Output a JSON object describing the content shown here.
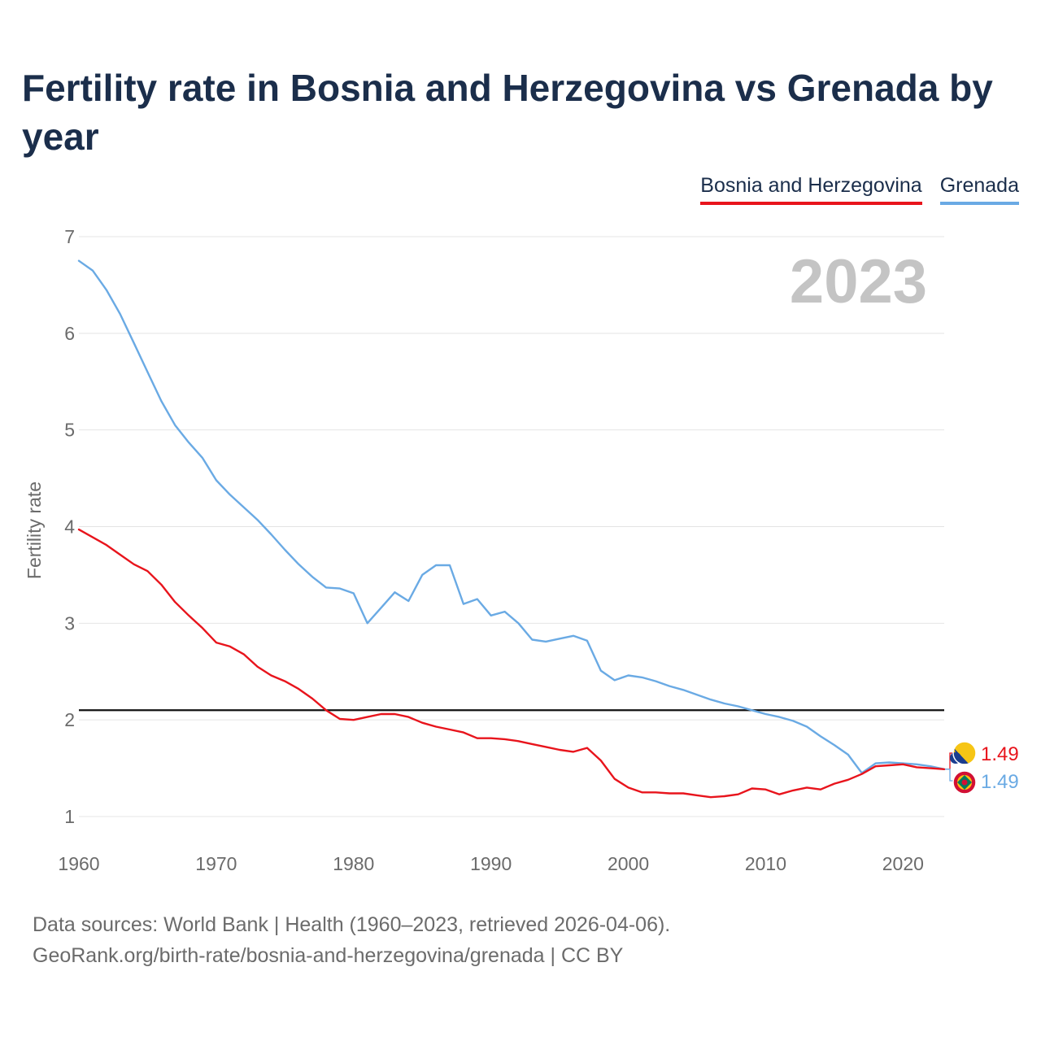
{
  "chart_data": {
    "type": "line",
    "title": "Fertility rate in Bosnia and Herzegovina vs Grenada by year",
    "ylabel": "Fertility rate",
    "xlabel": "",
    "xlim": [
      1960,
      2023
    ],
    "ylim": [
      1,
      7
    ],
    "x_ticks": [
      1960,
      1970,
      1980,
      1990,
      2000,
      2010,
      2020
    ],
    "y_ticks": [
      1,
      2,
      3,
      4,
      5,
      6,
      7
    ],
    "grid": true,
    "year_label": "2023",
    "reference_line": 2.1,
    "legend_position": "top-right",
    "x": [
      1960,
      1961,
      1962,
      1963,
      1964,
      1965,
      1966,
      1967,
      1968,
      1969,
      1970,
      1971,
      1972,
      1973,
      1974,
      1975,
      1976,
      1977,
      1978,
      1979,
      1980,
      1981,
      1982,
      1983,
      1984,
      1985,
      1986,
      1987,
      1988,
      1989,
      1990,
      1991,
      1992,
      1993,
      1994,
      1995,
      1996,
      1997,
      1998,
      1999,
      2000,
      2001,
      2002,
      2003,
      2004,
      2005,
      2006,
      2007,
      2008,
      2009,
      2010,
      2011,
      2012,
      2013,
      2014,
      2015,
      2016,
      2017,
      2018,
      2019,
      2020,
      2021,
      2022,
      2023
    ],
    "series": [
      {
        "name": "Bosnia and Herzegovina",
        "color": "#e8141c",
        "end_label": "1.49",
        "values": [
          3.97,
          3.89,
          3.81,
          3.71,
          3.61,
          3.54,
          3.4,
          3.22,
          3.08,
          2.95,
          2.8,
          2.76,
          2.68,
          2.55,
          2.46,
          2.4,
          2.32,
          2.22,
          2.1,
          2.01,
          2.0,
          2.03,
          2.06,
          2.06,
          2.03,
          1.97,
          1.93,
          1.9,
          1.87,
          1.81,
          1.81,
          1.8,
          1.78,
          1.75,
          1.72,
          1.69,
          1.67,
          1.71,
          1.58,
          1.39,
          1.3,
          1.25,
          1.25,
          1.24,
          1.24,
          1.22,
          1.2,
          1.21,
          1.23,
          1.29,
          1.28,
          1.23,
          1.27,
          1.3,
          1.28,
          1.34,
          1.38,
          1.44,
          1.52,
          1.53,
          1.54,
          1.51,
          1.5,
          1.49
        ]
      },
      {
        "name": "Grenada",
        "color": "#6aaae4",
        "end_label": "1.49",
        "values": [
          6.75,
          6.65,
          6.45,
          6.2,
          5.9,
          5.6,
          5.3,
          5.05,
          4.87,
          4.71,
          4.48,
          4.33,
          4.2,
          4.07,
          3.92,
          3.76,
          3.61,
          3.48,
          3.37,
          3.36,
          3.31,
          3.0,
          3.16,
          3.32,
          3.23,
          3.5,
          3.6,
          3.6,
          3.2,
          3.25,
          3.08,
          3.12,
          3.0,
          2.83,
          2.81,
          2.84,
          2.87,
          2.82,
          2.51,
          2.41,
          2.46,
          2.44,
          2.4,
          2.35,
          2.31,
          2.26,
          2.21,
          2.17,
          2.14,
          2.1,
          2.06,
          2.03,
          1.99,
          1.93,
          1.83,
          1.74,
          1.64,
          1.45,
          1.55,
          1.56,
          1.55,
          1.54,
          1.52,
          1.49
        ]
      }
    ]
  },
  "sources": {
    "line1": "Data sources: World Bank | Health (1960–2023, retrieved 2026-04-06).",
    "line2": "GeoRank.org/birth-rate/bosnia-and-herzegovina/grenada | CC BY"
  }
}
